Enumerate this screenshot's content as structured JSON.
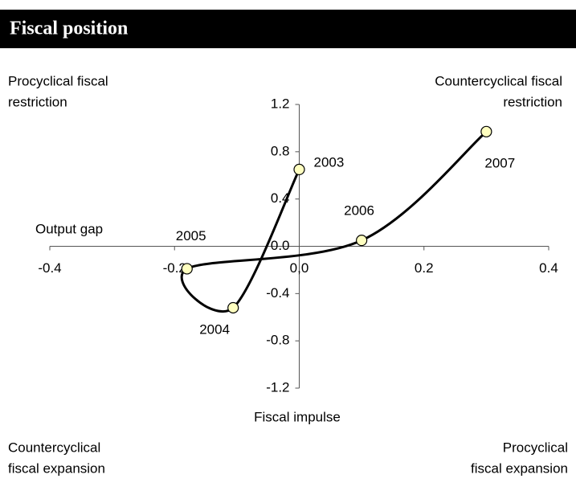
{
  "chart_data": {
    "type": "line",
    "title": "Fiscal position",
    "x_label": "Output gap",
    "y_label": "Fiscal impulse",
    "annotations": [
      {
        "lines": [
          "Procyclical fiscal",
          "restriction"
        ]
      },
      {
        "lines": [
          "Countercyclical  fiscal",
          "restriction"
        ]
      },
      {
        "lines": [
          "Countercyclical",
          "fiscal expansion"
        ]
      },
      {
        "lines": [
          "Procyclical",
          "fiscal expansion"
        ]
      }
    ],
    "point_labels": [
      "2003",
      "2004",
      "2005",
      "2006",
      "2007"
    ],
    "x": [
      0.0,
      -0.106,
      -0.18,
      0.1,
      0.3
    ],
    "values": [
      0.65,
      -0.52,
      -0.19,
      0.05,
      0.97
    ],
    "color": "#000000",
    "marker_color": "#ffffc0",
    "xlim": [
      -0.4,
      0.4
    ],
    "ylim": [
      -1.2,
      1.2
    ],
    "xticks": [
      -0.4,
      -0.2,
      {
        "value": 0,
        "label": "0,0"
      },
      0.2,
      0.4
    ],
    "yticks": [
      -1.2,
      -0.8,
      -0.4,
      {
        "value": 0,
        "label": "0.0"
      },
      0.4,
      0.8,
      1.2
    ]
  }
}
